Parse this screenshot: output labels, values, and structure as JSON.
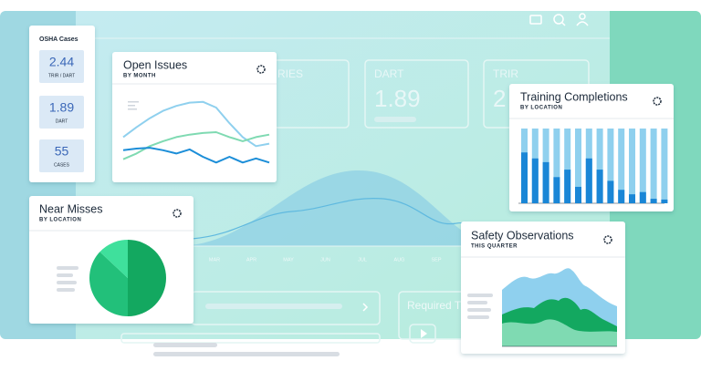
{
  "osha": {
    "title": "OSHA Cases",
    "stats": [
      {
        "value": "2.44",
        "label": "TRIR / DART"
      },
      {
        "value": "1.89",
        "label": "DART"
      },
      {
        "value": "55",
        "label": "CASES"
      }
    ]
  },
  "background": {
    "kpis": [
      {
        "label": "RIES"
      },
      {
        "label": "DART",
        "value": "1.89"
      },
      {
        "label": "TRIR",
        "value": "2"
      }
    ],
    "months": [
      "MAR",
      "APR",
      "MAY",
      "JUN",
      "JUL",
      "AUG",
      "SEP"
    ],
    "required": "Required T"
  },
  "open_issues": {
    "type": "line",
    "title": "Open Issues",
    "subtitle": "BY MONTH",
    "ylim": [
      0,
      100
    ],
    "series": [
      {
        "color": "#8fd0ee",
        "values": [
          44,
          56,
          67,
          76,
          82,
          86,
          87,
          80,
          61,
          44,
          33,
          36
        ]
      },
      {
        "color": "#7fdab2",
        "values": [
          17,
          24,
          33,
          39,
          44,
          47,
          49,
          50,
          44,
          39,
          44,
          47
        ]
      },
      {
        "color": "#1c8ed8",
        "values": [
          28,
          30,
          31,
          28,
          24,
          29,
          20,
          13,
          20,
          13,
          18,
          13
        ]
      }
    ]
  },
  "training": {
    "type": "bar",
    "title": "Training Completions",
    "subtitle": "BY LOCATION",
    "ylim": [
      0,
      100
    ],
    "color_full": "#8fd0ee",
    "color": "#1a86d6",
    "values": [
      68,
      60,
      55,
      35,
      45,
      22,
      60,
      45,
      30,
      18,
      12,
      15,
      6,
      5
    ]
  },
  "near_misses": {
    "type": "pie",
    "title": "Near Misses",
    "subtitle": "BY LOCATION",
    "colors": [
      "#13a860",
      "#22c07a",
      "#3fe09c"
    ],
    "values": [
      50,
      37,
      13
    ]
  },
  "safety": {
    "title": "Safety Observations",
    "subtitle": "THIS QUARTER"
  }
}
